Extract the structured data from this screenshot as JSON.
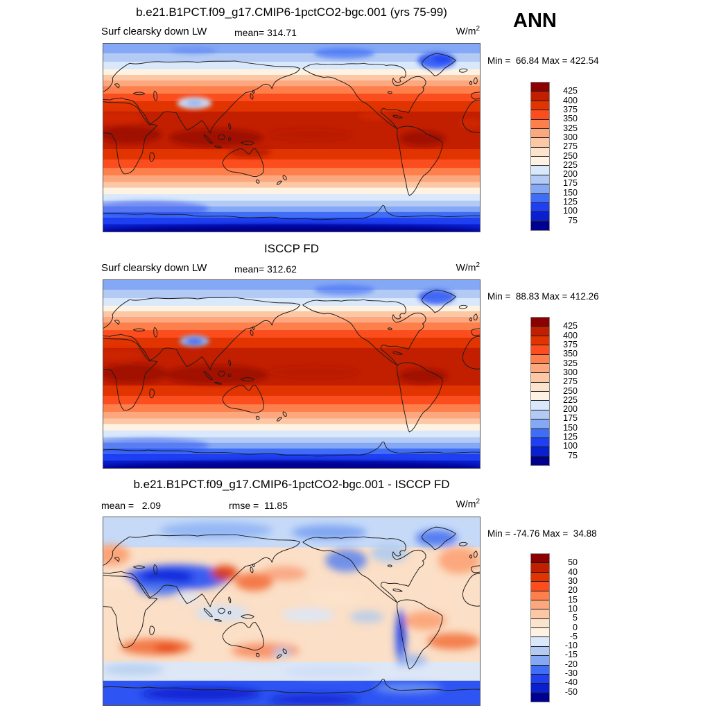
{
  "season": "ANN",
  "panels": [
    {
      "title": "b.e21.B1PCT.f09_g17.CMIP6-1pctCO2-bgc.001 (yrs 75-99)",
      "variable": "Surf clearsky down LW",
      "mean_text": "mean= 314.71",
      "units_base": "W/m",
      "units_exp": "2",
      "minmax_text": "Min =  66.84 Max = 422.54",
      "mean": 314.71,
      "min": 66.84,
      "max": 422.54,
      "colorbar": {
        "labels": [
          "425",
          "400",
          "375",
          "350",
          "325",
          "300",
          "275",
          "250",
          "225",
          "200",
          "175",
          "150",
          "125",
          "100",
          "75"
        ],
        "colors": [
          "#8B0000",
          "#C21F00",
          "#E13400",
          "#FB4D1E",
          "#FC7F4C",
          "#FDA77E",
          "#FBC7A4",
          "#FCE3CC",
          "#FEF3E2",
          "#D9E8FB",
          "#B3CBF4",
          "#85A8F5",
          "#3F6DF6",
          "#1E3FF2",
          "#0A20CF",
          "#000090"
        ]
      }
    },
    {
      "title": "ISCCP FD",
      "variable": "Surf clearsky down LW",
      "mean_text": "mean= 312.62",
      "units_base": "W/m",
      "units_exp": "2",
      "minmax_text": "Min =  88.83 Max = 412.26",
      "mean": 312.62,
      "min": 88.83,
      "max": 412.26,
      "colorbar": {
        "labels": [
          "425",
          "400",
          "375",
          "350",
          "325",
          "300",
          "275",
          "250",
          "225",
          "200",
          "175",
          "150",
          "125",
          "100",
          "75"
        ],
        "colors": [
          "#8B0000",
          "#C21F00",
          "#E13400",
          "#FB4D1E",
          "#FC7F4C",
          "#FDA77E",
          "#FBC7A4",
          "#FCE3CC",
          "#FEF3E2",
          "#D9E8FB",
          "#B3CBF4",
          "#85A8F5",
          "#3F6DF6",
          "#1E3FF2",
          "#0A20CF",
          "#000090"
        ]
      }
    },
    {
      "title": "b.e21.B1PCT.f09_g17.CMIP6-1pctCO2-bgc.001 - ISCCP FD",
      "mean_text": "mean =   2.09",
      "rmse_text": "rmse =  11.85",
      "units_base": "W/m",
      "units_exp": "2",
      "minmax_text": "Min = -74.76 Max =  34.88",
      "mean": 2.09,
      "rmse": 11.85,
      "min": -74.76,
      "max": 34.88,
      "colorbar": {
        "labels": [
          "50",
          "40",
          "30",
          "20",
          "15",
          "10",
          "5",
          "0",
          "-5",
          "-10",
          "-15",
          "-20",
          "-30",
          "-40",
          "-50"
        ],
        "colors": [
          "#8B0000",
          "#C21F00",
          "#E13400",
          "#FB4D1E",
          "#FC7F4C",
          "#FDA77E",
          "#FBC7A4",
          "#FCE3CC",
          "#FEF3E2",
          "#D9E8FB",
          "#B3CBF4",
          "#85A8F5",
          "#3F6DF6",
          "#1E3FF2",
          "#0A20CF",
          "#000090"
        ]
      }
    }
  ],
  "chart_data": [
    {
      "type": "heatmap",
      "title": "b.e21.B1PCT.f09_g17.CMIP6-1pctCO2-bgc.001 (yrs 75-99)",
      "variable": "Surf clearsky down LW",
      "season": "ANN",
      "units": "W/m^2",
      "mean": 314.71,
      "min": 66.84,
      "max": 422.54,
      "projection": "global cylindrical lat-lon map, lon 0-360E left to right, lat 90N top to 90S bottom",
      "contour_levels": [
        75,
        100,
        125,
        150,
        175,
        200,
        225,
        250,
        275,
        300,
        325,
        350,
        375,
        400,
        425
      ],
      "palette_high_to_low": [
        "#8B0000",
        "#C21F00",
        "#E13400",
        "#FB4D1E",
        "#FC7F4C",
        "#FDA77E",
        "#FBC7A4",
        "#FCE3CC",
        "#FEF3E2",
        "#D9E8FB",
        "#B3CBF4",
        "#85A8F5",
        "#3F6DF6",
        "#1E3FF2",
        "#0A20CF",
        "#000090"
      ],
      "legend_position": "right",
      "pattern": "high values (dark red ~400 W/m^2) in tropics, decreasing poleward; minimum (navy <75) over Antarctica; pale-blue low patch over Tibetan Plateau and Greenland"
    },
    {
      "type": "heatmap",
      "title": "ISCCP FD",
      "variable": "Surf clearsky down LW",
      "season": "ANN",
      "units": "W/m^2",
      "mean": 312.62,
      "min": 88.83,
      "max": 412.26,
      "projection": "global cylindrical lat-lon map, lon 0-360E left to right, lat 90N top to 90S bottom",
      "contour_levels": [
        75,
        100,
        125,
        150,
        175,
        200,
        225,
        250,
        275,
        300,
        325,
        350,
        375,
        400,
        425
      ],
      "palette_high_to_low": [
        "#8B0000",
        "#C21F00",
        "#E13400",
        "#FB4D1E",
        "#FC7F4C",
        "#FDA77E",
        "#FBC7A4",
        "#FCE3CC",
        "#FEF3E2",
        "#D9E8FB",
        "#B3CBF4",
        "#85A8F5",
        "#3F6DF6",
        "#1E3FF2",
        "#0A20CF",
        "#000090"
      ],
      "legend_position": "right",
      "pattern": "smoother zonal version of model field; blue low patch over Tibetan Plateau; navy minimum over Antarctica"
    },
    {
      "type": "heatmap",
      "kind": "difference (model - observation)",
      "title": "b.e21.B1PCT.f09_g17.CMIP6-1pctCO2-bgc.001 - ISCCP FD",
      "season": "ANN",
      "units": "W/m^2",
      "mean": 2.09,
      "rmse": 11.85,
      "min": -74.76,
      "max": 34.88,
      "projection": "global cylindrical lat-lon map, lon 0-360E left to right, lat 90N top to 90S bottom",
      "contour_levels": [
        -50,
        -40,
        -30,
        -20,
        -15,
        -10,
        -5,
        0,
        5,
        10,
        15,
        20,
        30,
        40,
        50
      ],
      "palette_high_to_low": [
        "#8B0000",
        "#C21F00",
        "#E13400",
        "#FB4D1E",
        "#FC7F4C",
        "#FDA77E",
        "#FBC7A4",
        "#FCE3CC",
        "#FEF3E2",
        "#D9E8FB",
        "#B3CBF4",
        "#85A8F5",
        "#3F6DF6",
        "#1E3FF2",
        "#0A20CF",
        "#000090"
      ],
      "legend_position": "right",
      "pattern": "mostly pale peach (+0-10); strong negative (blue, -30 to -50) over Middle East/Tibet, Andes, Greenland, western North America and Antarctica; positive (orange/red, +15-30) over NW Pacific near Japan, western China, Southern Ocean bands and subtropical oceans"
    }
  ]
}
